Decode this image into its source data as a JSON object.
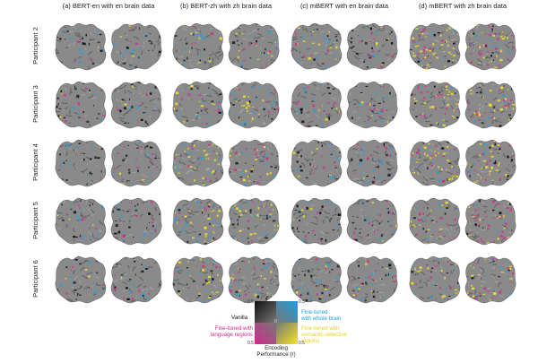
{
  "columns": [
    {
      "label": "(a) BERT-en with en brain data"
    },
    {
      "label": "(b) BERT-zh with zh brain data"
    },
    {
      "label": "(c) mBERT with en brain data"
    },
    {
      "label": "(d) mBERT with zh brain data"
    }
  ],
  "rows": [
    {
      "label": "Participant 2"
    },
    {
      "label": "Participant 3"
    },
    {
      "label": "Participant 4"
    },
    {
      "label": "Participant 5"
    },
    {
      "label": "Participant 6"
    }
  ],
  "legend": {
    "vanilla": "Vanilla",
    "whole_brain": "Fine-tuned\nwith whole brain",
    "language_regions": "Fine-tuned with\nlanguage regions",
    "semantic_selective": "Fine-tuned with\nsemantic-selective\nregions",
    "axis_title": "Encoding\nPerformance (r)",
    "tick_top_left": "0.5",
    "tick_top_right": "0.5",
    "tick_center": "0",
    "tick_bottom_left": "0.5",
    "tick_bottom_right": "0.5"
  },
  "colors": {
    "cortex_gray": "#8a8a8a",
    "vanilla": "#111111",
    "whole_brain": "#2a9fd8",
    "language_regions": "#d0308a",
    "semantic_selective": "#f2e02a"
  },
  "map_intensity": [
    [
      0.45,
      0.5,
      0.55,
      0.85
    ],
    [
      0.45,
      0.7,
      0.55,
      0.75
    ],
    [
      0.4,
      0.6,
      0.55,
      0.7
    ],
    [
      0.4,
      0.7,
      0.5,
      0.65
    ],
    [
      0.4,
      0.65,
      0.5,
      0.6
    ]
  ]
}
